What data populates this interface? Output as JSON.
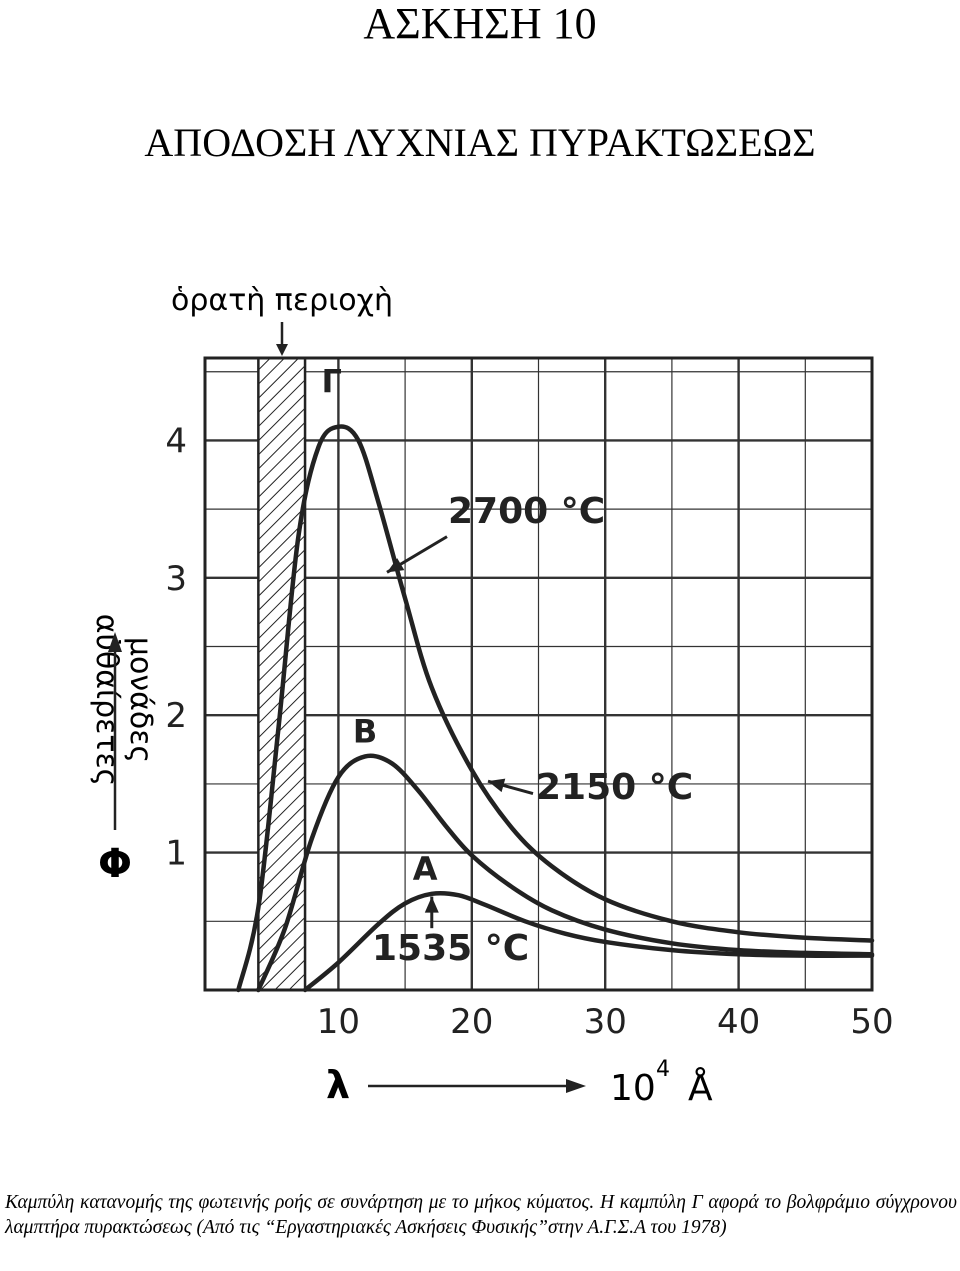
{
  "header": {
    "exercise": "ΑΣΚΗΣΗ  10",
    "subtitle": "ΑΠΟΔΟΣΗ ΛΥΧΝΙΑΣ ΠΥΡΑΚΤΩΣΕΩΣ"
  },
  "chart_data": {
    "type": "line",
    "visible_region_label": "ὁρατὴ περιοχὴ",
    "visible_region_x": [
      4,
      7.5
    ],
    "ylabel_line1": "αὐθαίρετες",
    "ylabel_line2": "μονάδες",
    "ylabel_symbol": "Φ",
    "xlabel_symbol": "λ",
    "xlabel_unit": "10",
    "xlabel_exp": "4",
    "xlabel_angstrom": "Å",
    "xlim": [
      0,
      50
    ],
    "ylim": [
      0,
      4.6
    ],
    "x_ticks": [
      "10",
      "20",
      "30",
      "40",
      "50"
    ],
    "y_ticks": [
      "1",
      "2",
      "3",
      "4"
    ],
    "grid": true,
    "series": [
      {
        "name": "Γ",
        "temperature": "2700 °C",
        "points": [
          [
            2.5,
            0
          ],
          [
            4,
            0.6
          ],
          [
            5.5,
            1.9
          ],
          [
            7,
            3.3
          ],
          [
            8.5,
            3.95
          ],
          [
            10,
            4.1
          ],
          [
            11.5,
            4.0
          ],
          [
            13,
            3.55
          ],
          [
            15,
            2.85
          ],
          [
            17,
            2.2
          ],
          [
            20,
            1.6
          ],
          [
            23,
            1.18
          ],
          [
            26,
            0.9
          ],
          [
            30,
            0.66
          ],
          [
            35,
            0.5
          ],
          [
            40,
            0.42
          ],
          [
            45,
            0.38
          ],
          [
            50,
            0.36
          ]
        ]
      },
      {
        "name": "Β",
        "temperature": "2150 °C",
        "points": [
          [
            4,
            0
          ],
          [
            6,
            0.45
          ],
          [
            8,
            1.1
          ],
          [
            10,
            1.55
          ],
          [
            12,
            1.7
          ],
          [
            14,
            1.65
          ],
          [
            16,
            1.45
          ],
          [
            18,
            1.2
          ],
          [
            20,
            0.98
          ],
          [
            23,
            0.75
          ],
          [
            26,
            0.58
          ],
          [
            30,
            0.44
          ],
          [
            35,
            0.34
          ],
          [
            40,
            0.29
          ],
          [
            45,
            0.27
          ],
          [
            50,
            0.26
          ]
        ]
      },
      {
        "name": "Α",
        "temperature": "1535 °C",
        "points": [
          [
            7.5,
            0
          ],
          [
            10,
            0.2
          ],
          [
            13,
            0.48
          ],
          [
            15,
            0.63
          ],
          [
            17,
            0.7
          ],
          [
            19,
            0.69
          ],
          [
            21,
            0.62
          ],
          [
            24,
            0.5
          ],
          [
            27,
            0.41
          ],
          [
            30,
            0.35
          ],
          [
            35,
            0.29
          ],
          [
            40,
            0.26
          ],
          [
            45,
            0.25
          ],
          [
            50,
            0.25
          ]
        ]
      }
    ]
  },
  "caption": "Καμπύλη κατανομής της φωτεινής ροής σε συνάρτηση με το μήκος κύματος. Η καμπύλη Γ αφορά το βολφράμιο σύγχρονου λαμπτήρα πυρακτώσεως (Από τις “Εργαστηριακές Ασκήσεις Φυσικής”στην Α.Γ.Σ.Α του 1978)"
}
